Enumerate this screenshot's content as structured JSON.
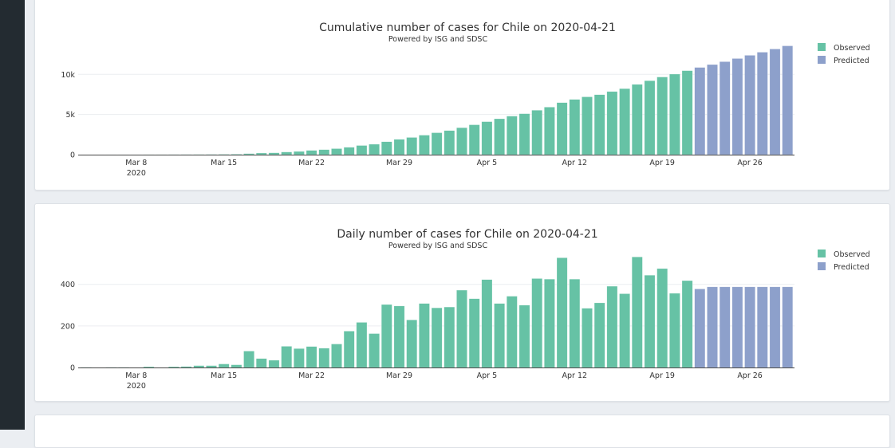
{
  "chart_data": [
    {
      "type": "bar",
      "title": "Cumulative number of cases for Chile on 2020-04-21",
      "subtitle": "Powered by ISG and SDSC",
      "xlabel": "",
      "ylabel": "",
      "x_start": "2020-03-04",
      "x_ticks": [
        "Mar 8",
        "Mar 15",
        "Mar 22",
        "Mar 29",
        "Apr 5",
        "Apr 12",
        "Apr 19",
        "Apr 26"
      ],
      "x_tick_year": "2020",
      "y_ticks": [
        {
          "value": 0,
          "label": "0"
        },
        {
          "value": 5000,
          "label": "5k"
        },
        {
          "value": 10000,
          "label": "10k"
        }
      ],
      "ylim": [
        0,
        13700
      ],
      "series": [
        {
          "name": "Observed",
          "color": "#66c2a5",
          "start": "2020-03-04",
          "values": [
            1,
            1,
            2,
            3,
            3,
            7,
            7,
            11,
            16,
            25,
            34,
            51,
            64,
            130,
            200,
            230,
            330,
            400,
            530,
            625,
            750,
            920,
            1140,
            1300,
            1610,
            1910,
            2140,
            2430,
            2730,
            3000,
            3355,
            3720,
            4110,
            4470,
            4800,
            5100,
            5530,
            5920,
            6480,
            6880,
            7200,
            7470,
            7860,
            8220,
            8750,
            9210,
            9670,
            10030,
            10460
          ]
        },
        {
          "name": "Predicted",
          "color": "#8da0cb",
          "start": "2020-04-22",
          "values": [
            10860,
            11220,
            11580,
            11970,
            12370,
            12760,
            13160,
            13550
          ]
        }
      ],
      "legend": "top-right"
    },
    {
      "type": "bar",
      "title": "Daily number of cases for Chile on 2020-04-21",
      "subtitle": "Powered by ISG and SDSC",
      "xlabel": "",
      "ylabel": "",
      "x_start": "2020-03-04",
      "x_ticks": [
        "Mar 8",
        "Mar 15",
        "Mar 22",
        "Mar 29",
        "Apr 5",
        "Apr 12",
        "Apr 19",
        "Apr 26"
      ],
      "x_tick_year": "2020",
      "y_ticks": [
        {
          "value": 0,
          "label": "0"
        },
        {
          "value": 200,
          "label": "200"
        },
        {
          "value": 400,
          "label": "400"
        }
      ],
      "ylim": [
        0,
        560
      ],
      "series": [
        {
          "name": "Observed",
          "color": "#66c2a5",
          "start": "2020-03-04",
          "values": [
            1,
            0,
            1,
            1,
            0,
            4,
            0,
            4,
            5,
            9,
            9,
            17,
            13,
            79,
            43,
            35,
            102,
            91,
            101,
            93,
            113,
            175,
            217,
            163,
            303,
            296,
            229,
            308,
            287,
            291,
            372,
            331,
            423,
            308,
            343,
            300,
            428,
            425,
            528,
            425,
            285,
            311,
            391,
            355,
            532,
            444,
            476,
            357,
            418
          ]
        },
        {
          "name": "Predicted",
          "color": "#8da0cb",
          "start": "2020-04-22",
          "values": [
            378,
            388,
            388,
            388,
            388,
            388,
            388,
            388
          ]
        }
      ],
      "legend": "top-right"
    }
  ]
}
